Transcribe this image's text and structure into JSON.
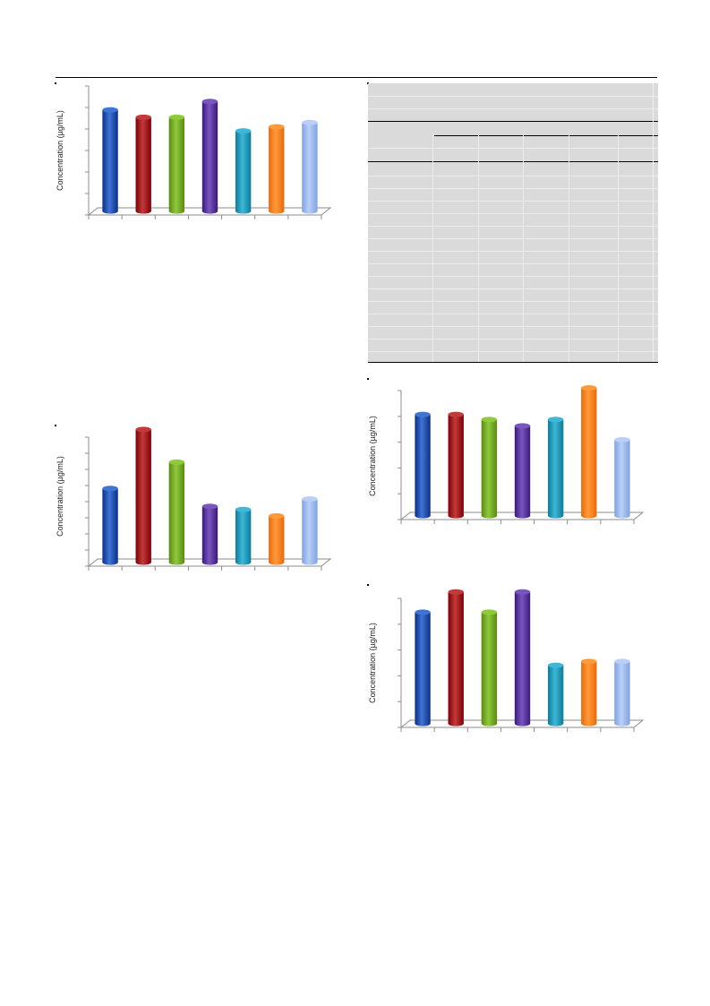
{
  "colors": {
    "series": [
      "#0b2f86",
      "#7d0006",
      "#5a8a10",
      "#3a1a78",
      "#0a7c9a",
      "#e86a0a",
      "#7fa2e2"
    ],
    "series_light": [
      "#3f74d6",
      "#c33a3a",
      "#8fc93c",
      "#7a55c0",
      "#3fb7d6",
      "#ff9a3a",
      "#b9cff6"
    ],
    "axis": "#8c8c8c",
    "table_bg": "#dadada"
  },
  "chart_data": [
    {
      "type": "bar",
      "categories": [
        "",
        "",
        "",
        "",
        "",
        "",
        ""
      ],
      "values": [
        4.8,
        4.45,
        4.45,
        5.2,
        3.8,
        4.0,
        4.2
      ],
      "ylabel": "Concentration (µg/mL)",
      "ylim": [
        0,
        6
      ],
      "yticks": 6,
      "grid": false
    },
    {
      "type": "bar",
      "categories": [
        "",
        "",
        "",
        "",
        "",
        "",
        ""
      ],
      "values": [
        3.5,
        6.3,
        4.75,
        2.65,
        2.5,
        2.2,
        3.0
      ],
      "ylabel": "Concentration (µg/mL)",
      "ylim": [
        0,
        6
      ],
      "yticks": 8,
      "grid": false
    },
    {
      "type": "bar",
      "categories": [
        "",
        "",
        "",
        "",
        "",
        "",
        ""
      ],
      "values": [
        4.0,
        4.0,
        3.8,
        3.55,
        3.8,
        5.05,
        3.0
      ],
      "ylabel": "Concentration (µg/mL)",
      "ylim": [
        0,
        5
      ],
      "yticks": 5,
      "grid": false
    },
    {
      "type": "bar",
      "categories": [
        "",
        "",
        "",
        "",
        "",
        "",
        ""
      ],
      "values": [
        4.4,
        5.2,
        4.4,
        5.2,
        2.3,
        2.45,
        2.45
      ],
      "ylabel": "Concentration (µg/mL)",
      "ylim": [
        0,
        5
      ],
      "yticks": 5,
      "grid": false
    }
  ]
}
